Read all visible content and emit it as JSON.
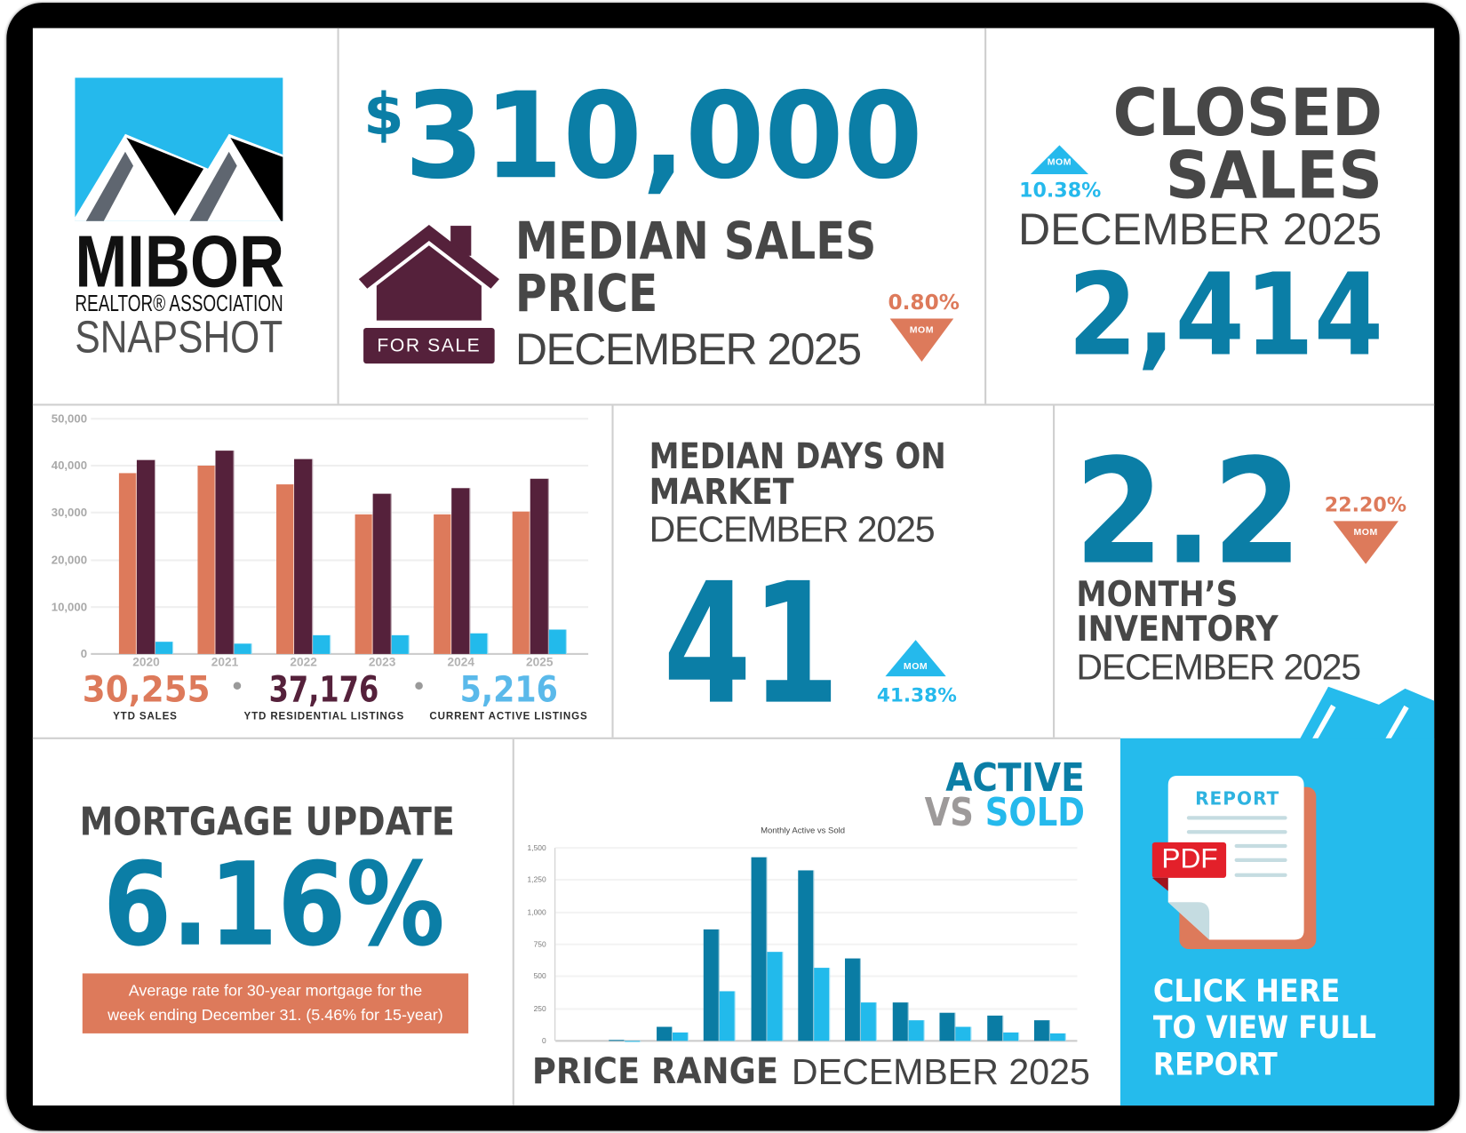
{
  "logo": {
    "brand": "MIBOR",
    "association": "REALTOR® ASSOCIATION",
    "tagline": "SNAPSHOT"
  },
  "median_price": {
    "currency": "$",
    "value": "310,000",
    "title": [
      "MEDIAN SALES",
      "PRICE"
    ],
    "period": "DECEMBER 2025",
    "sign": "FOR SALE",
    "icon": "house-for-sale-icon",
    "change": {
      "percent": "0.80%",
      "label": "MOM",
      "direction": "down"
    }
  },
  "closed_sales": {
    "title": [
      "CLOSED",
      "SALES"
    ],
    "period": "DECEMBER 2025",
    "value": "2,414",
    "change": {
      "percent": "10.38%",
      "label": "MOM",
      "direction": "up"
    }
  },
  "ytd": {
    "separator": "•",
    "sales": {
      "value": "30,255",
      "label": "YTD SALES"
    },
    "listings": {
      "value": "37,176",
      "label": "YTD RESIDENTIAL LISTINGS"
    },
    "active": {
      "value": "5,216",
      "label": "CURRENT ACTIVE LISTINGS"
    }
  },
  "days_on_market": {
    "title": [
      "MEDIAN DAYS ON",
      "MARKET"
    ],
    "period": "DECEMBER 2025",
    "value": "41",
    "change": {
      "percent": "41.38%",
      "label": "MOM",
      "direction": "up"
    }
  },
  "inventory": {
    "value": "2.2",
    "title": [
      "MONTH’S",
      "INVENTORY"
    ],
    "period": "DECEMBER 2025",
    "change": {
      "percent": "22.20%",
      "label": "MOM",
      "direction": "down"
    }
  },
  "mortgage": {
    "title": "MORTGAGE UPDATE",
    "rate": "6.16%",
    "note": [
      "Average rate for 30-year mortgage for the",
      "week ending December 31. (5.46% for 15-year)"
    ]
  },
  "price_range": {
    "heading_active": "ACTIVE",
    "heading_vs": "VS",
    "heading_sold": "SOLD",
    "chart_title": "Monthly Active vs Sold",
    "footer_bold": "PRICE RANGE",
    "footer_period": "DECEMBER 2025"
  },
  "report": {
    "doc_label": "REPORT",
    "badge": "PDF",
    "icon": "pdf-report-icon",
    "cta": [
      "CLICK HERE",
      "TO VIEW FULL",
      "REPORT"
    ]
  },
  "colors": {
    "teal": "#0b7ea6",
    "sky_blue": "#25b9ec",
    "orange": "#dd7a5b",
    "maroon": "#55213b",
    "heading_gray": "#474747"
  },
  "chart_data": [
    {
      "type": "bar",
      "title": "",
      "categories": [
        "2020",
        "2021",
        "2022",
        "2023",
        "2024",
        "2025"
      ],
      "series": [
        {
          "name": "YTD Sales",
          "color": "#dd7a5b",
          "values": [
            38500,
            40000,
            36100,
            29600,
            29600,
            30255
          ]
        },
        {
          "name": "YTD Residential Listings",
          "color": "#55213b",
          "values": [
            41200,
            43200,
            41400,
            34100,
            35300,
            37176
          ]
        },
        {
          "name": "Current Active Listings",
          "color": "#22baeb",
          "values": [
            2500,
            2100,
            3900,
            3900,
            4300,
            5216
          ]
        }
      ],
      "xlabel": "",
      "ylabel": "",
      "ylim": [
        0,
        50000
      ],
      "yticks": [
        "0",
        "10,000",
        "20,000",
        "30,000",
        "40,000",
        "50,000"
      ],
      "grid": true,
      "legend": "none"
    },
    {
      "type": "bar",
      "title": "Monthly Active vs Sold",
      "categories": [
        "",
        "",
        "",
        "",
        "",
        "",
        "",
        "",
        "",
        "",
        ""
      ],
      "series": [
        {
          "name": "Active",
          "color": "#0a7ca4",
          "values": [
            0,
            10,
            110,
            865,
            1425,
            1325,
            644,
            300,
            215,
            194,
            159
          ]
        },
        {
          "name": "Sold",
          "color": "#22baeb",
          "values": [
            0,
            3,
            64,
            383,
            693,
            569,
            296,
            158,
            112,
            68,
            60
          ]
        }
      ],
      "xlabel": "PRICE RANGE",
      "ylabel": "",
      "ylim": [
        0,
        1500
      ],
      "yticks": [
        "0",
        "250",
        "500",
        "750",
        "1,000",
        "1,250",
        "1,500"
      ],
      "grid": true,
      "legend": "none"
    }
  ]
}
